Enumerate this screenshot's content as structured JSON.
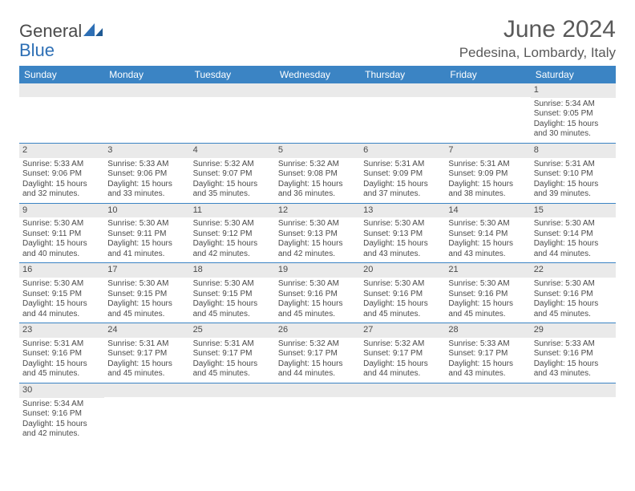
{
  "brand": {
    "part1": "General",
    "part2": "Blue"
  },
  "title": "June 2024",
  "location": "Pedesina, Lombardy, Italy",
  "colors": {
    "header_bg": "#3b84c4",
    "header_text": "#ffffff",
    "daynum_bg": "#eaeaea",
    "cell_border": "#3b84c4",
    "text": "#4a4a4a",
    "brand_blue": "#2d6fb5"
  },
  "days_of_week": [
    "Sunday",
    "Monday",
    "Tuesday",
    "Wednesday",
    "Thursday",
    "Friday",
    "Saturday"
  ],
  "weeks": [
    [
      null,
      null,
      null,
      null,
      null,
      null,
      {
        "n": "1",
        "sr": "Sunrise: 5:34 AM",
        "ss": "Sunset: 9:05 PM",
        "d1": "Daylight: 15 hours",
        "d2": "and 30 minutes."
      }
    ],
    [
      {
        "n": "2",
        "sr": "Sunrise: 5:33 AM",
        "ss": "Sunset: 9:06 PM",
        "d1": "Daylight: 15 hours",
        "d2": "and 32 minutes."
      },
      {
        "n": "3",
        "sr": "Sunrise: 5:33 AM",
        "ss": "Sunset: 9:06 PM",
        "d1": "Daylight: 15 hours",
        "d2": "and 33 minutes."
      },
      {
        "n": "4",
        "sr": "Sunrise: 5:32 AM",
        "ss": "Sunset: 9:07 PM",
        "d1": "Daylight: 15 hours",
        "d2": "and 35 minutes."
      },
      {
        "n": "5",
        "sr": "Sunrise: 5:32 AM",
        "ss": "Sunset: 9:08 PM",
        "d1": "Daylight: 15 hours",
        "d2": "and 36 minutes."
      },
      {
        "n": "6",
        "sr": "Sunrise: 5:31 AM",
        "ss": "Sunset: 9:09 PM",
        "d1": "Daylight: 15 hours",
        "d2": "and 37 minutes."
      },
      {
        "n": "7",
        "sr": "Sunrise: 5:31 AM",
        "ss": "Sunset: 9:09 PM",
        "d1": "Daylight: 15 hours",
        "d2": "and 38 minutes."
      },
      {
        "n": "8",
        "sr": "Sunrise: 5:31 AM",
        "ss": "Sunset: 9:10 PM",
        "d1": "Daylight: 15 hours",
        "d2": "and 39 minutes."
      }
    ],
    [
      {
        "n": "9",
        "sr": "Sunrise: 5:30 AM",
        "ss": "Sunset: 9:11 PM",
        "d1": "Daylight: 15 hours",
        "d2": "and 40 minutes."
      },
      {
        "n": "10",
        "sr": "Sunrise: 5:30 AM",
        "ss": "Sunset: 9:11 PM",
        "d1": "Daylight: 15 hours",
        "d2": "and 41 minutes."
      },
      {
        "n": "11",
        "sr": "Sunrise: 5:30 AM",
        "ss": "Sunset: 9:12 PM",
        "d1": "Daylight: 15 hours",
        "d2": "and 42 minutes."
      },
      {
        "n": "12",
        "sr": "Sunrise: 5:30 AM",
        "ss": "Sunset: 9:13 PM",
        "d1": "Daylight: 15 hours",
        "d2": "and 42 minutes."
      },
      {
        "n": "13",
        "sr": "Sunrise: 5:30 AM",
        "ss": "Sunset: 9:13 PM",
        "d1": "Daylight: 15 hours",
        "d2": "and 43 minutes."
      },
      {
        "n": "14",
        "sr": "Sunrise: 5:30 AM",
        "ss": "Sunset: 9:14 PM",
        "d1": "Daylight: 15 hours",
        "d2": "and 43 minutes."
      },
      {
        "n": "15",
        "sr": "Sunrise: 5:30 AM",
        "ss": "Sunset: 9:14 PM",
        "d1": "Daylight: 15 hours",
        "d2": "and 44 minutes."
      }
    ],
    [
      {
        "n": "16",
        "sr": "Sunrise: 5:30 AM",
        "ss": "Sunset: 9:15 PM",
        "d1": "Daylight: 15 hours",
        "d2": "and 44 minutes."
      },
      {
        "n": "17",
        "sr": "Sunrise: 5:30 AM",
        "ss": "Sunset: 9:15 PM",
        "d1": "Daylight: 15 hours",
        "d2": "and 45 minutes."
      },
      {
        "n": "18",
        "sr": "Sunrise: 5:30 AM",
        "ss": "Sunset: 9:15 PM",
        "d1": "Daylight: 15 hours",
        "d2": "and 45 minutes."
      },
      {
        "n": "19",
        "sr": "Sunrise: 5:30 AM",
        "ss": "Sunset: 9:16 PM",
        "d1": "Daylight: 15 hours",
        "d2": "and 45 minutes."
      },
      {
        "n": "20",
        "sr": "Sunrise: 5:30 AM",
        "ss": "Sunset: 9:16 PM",
        "d1": "Daylight: 15 hours",
        "d2": "and 45 minutes."
      },
      {
        "n": "21",
        "sr": "Sunrise: 5:30 AM",
        "ss": "Sunset: 9:16 PM",
        "d1": "Daylight: 15 hours",
        "d2": "and 45 minutes."
      },
      {
        "n": "22",
        "sr": "Sunrise: 5:30 AM",
        "ss": "Sunset: 9:16 PM",
        "d1": "Daylight: 15 hours",
        "d2": "and 45 minutes."
      }
    ],
    [
      {
        "n": "23",
        "sr": "Sunrise: 5:31 AM",
        "ss": "Sunset: 9:16 PM",
        "d1": "Daylight: 15 hours",
        "d2": "and 45 minutes."
      },
      {
        "n": "24",
        "sr": "Sunrise: 5:31 AM",
        "ss": "Sunset: 9:17 PM",
        "d1": "Daylight: 15 hours",
        "d2": "and 45 minutes."
      },
      {
        "n": "25",
        "sr": "Sunrise: 5:31 AM",
        "ss": "Sunset: 9:17 PM",
        "d1": "Daylight: 15 hours",
        "d2": "and 45 minutes."
      },
      {
        "n": "26",
        "sr": "Sunrise: 5:32 AM",
        "ss": "Sunset: 9:17 PM",
        "d1": "Daylight: 15 hours",
        "d2": "and 44 minutes."
      },
      {
        "n": "27",
        "sr": "Sunrise: 5:32 AM",
        "ss": "Sunset: 9:17 PM",
        "d1": "Daylight: 15 hours",
        "d2": "and 44 minutes."
      },
      {
        "n": "28",
        "sr": "Sunrise: 5:33 AM",
        "ss": "Sunset: 9:17 PM",
        "d1": "Daylight: 15 hours",
        "d2": "and 43 minutes."
      },
      {
        "n": "29",
        "sr": "Sunrise: 5:33 AM",
        "ss": "Sunset: 9:16 PM",
        "d1": "Daylight: 15 hours",
        "d2": "and 43 minutes."
      }
    ],
    [
      {
        "n": "30",
        "sr": "Sunrise: 5:34 AM",
        "ss": "Sunset: 9:16 PM",
        "d1": "Daylight: 15 hours",
        "d2": "and 42 minutes."
      },
      null,
      null,
      null,
      null,
      null,
      null
    ]
  ]
}
